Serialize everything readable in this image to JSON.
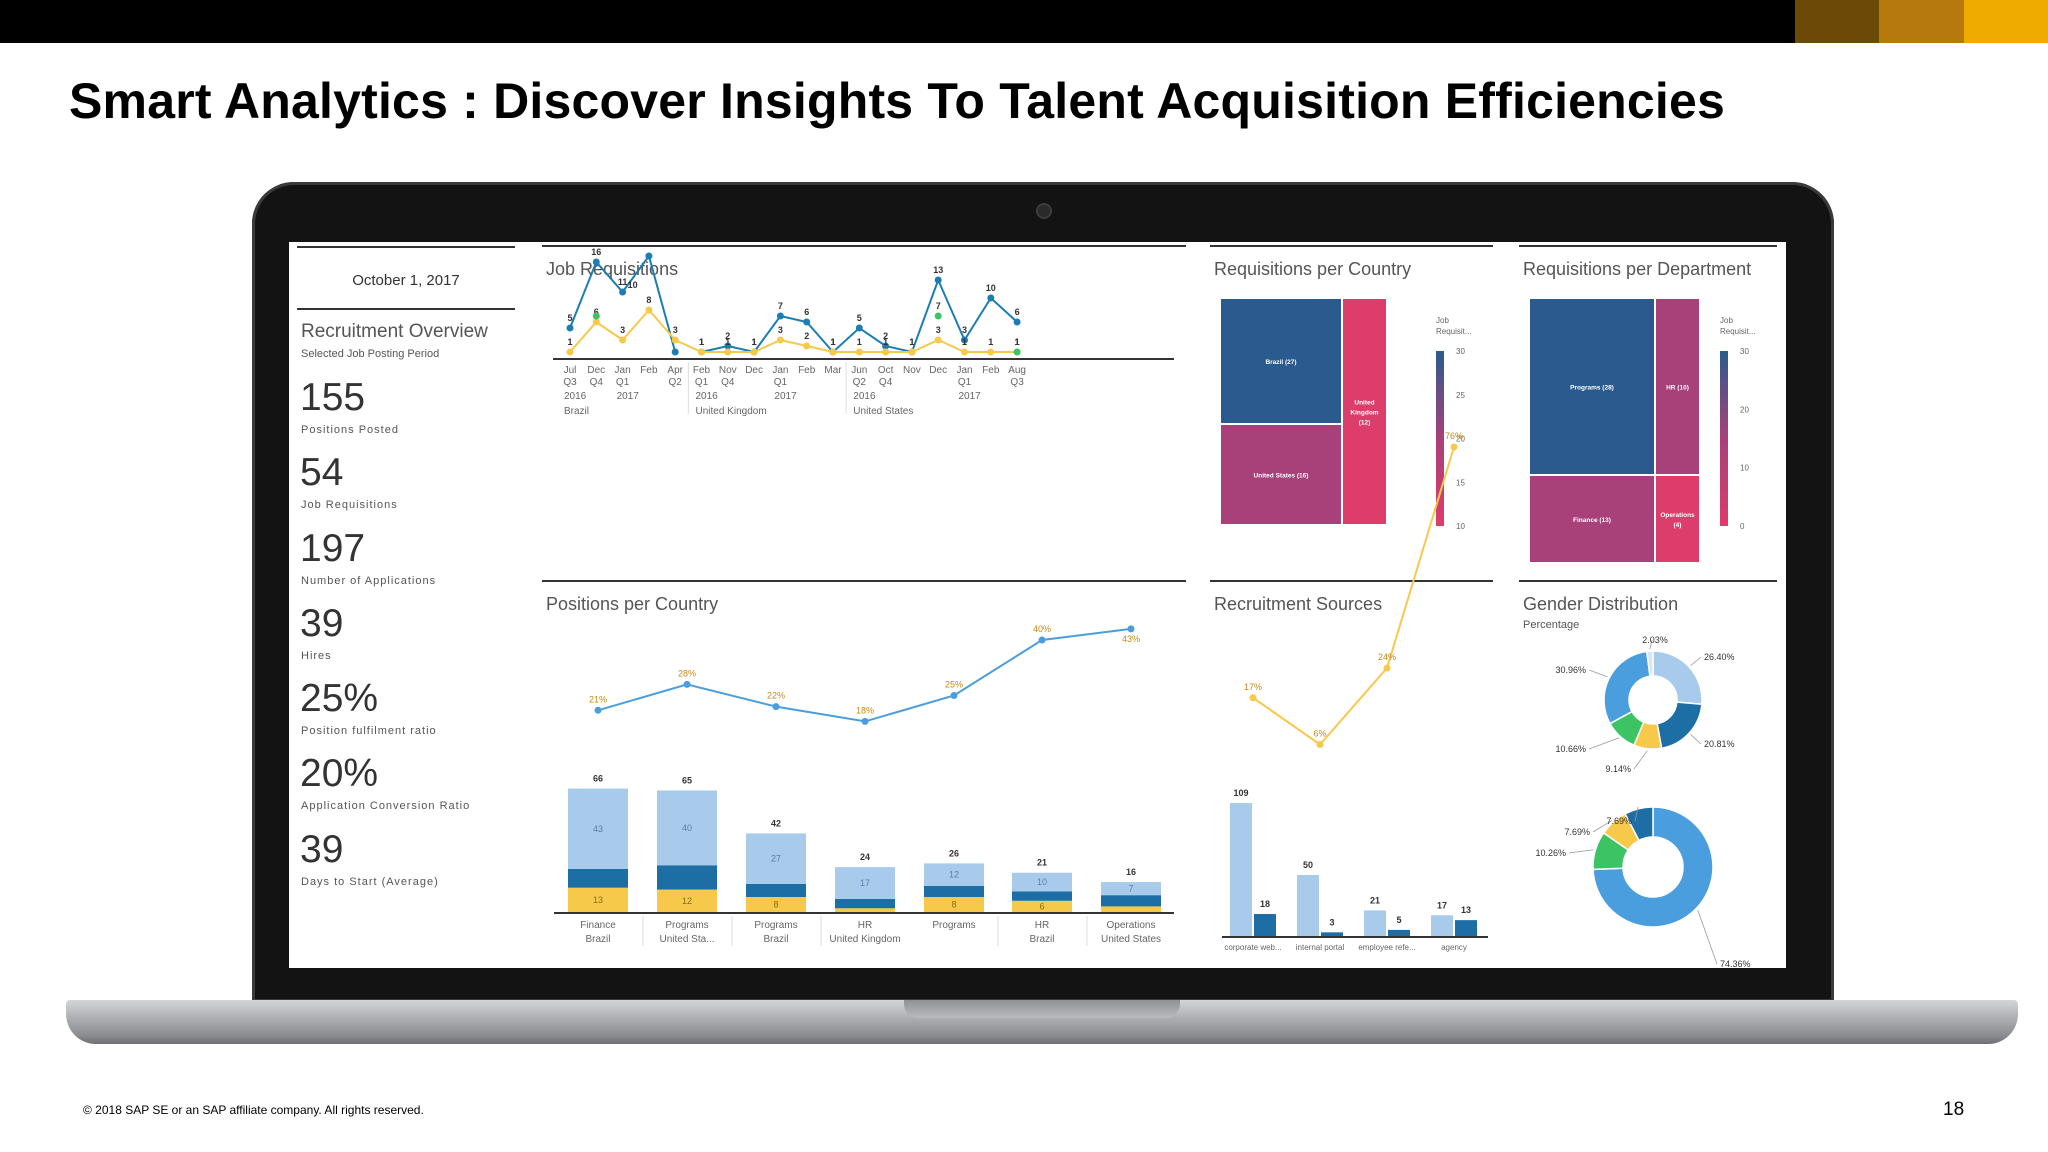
{
  "slide": {
    "title": "Smart Analytics : Discover Insights To Talent Acquisition Efficiencies",
    "footer": "© 2018 SAP SE or an SAP affiliate company. All rights reserved.",
    "page_number": "18",
    "brand_colors": [
      "#6b4a08",
      "#b6790e",
      "#f0ab00"
    ]
  },
  "sidebar": {
    "date": "October 1, 2017",
    "heading": "Recruitment Overview",
    "subheading": "Selected Job Posting Period",
    "kpis": [
      {
        "value": "155",
        "label": "Positions Posted"
      },
      {
        "value": "54",
        "label": "Job Requisitions"
      },
      {
        "value": "197",
        "label": "Number of Applications"
      },
      {
        "value": "39",
        "label": "Hires"
      },
      {
        "value": "25%",
        "label": "Position fulfilment ratio"
      },
      {
        "value": "20%",
        "label": "Application Conversion Ratio"
      },
      {
        "value": "39",
        "label": "Days to Start (Average)"
      }
    ]
  },
  "panels": {
    "job_requisitions": "Job Requisitions",
    "req_country": "Requisitions per Country",
    "req_department": "Requisitions per Department",
    "positions_country": "Positions per  Country",
    "recruitment_sources": "Recruitment Sources",
    "gender": "Gender Distribution",
    "gender_sub": "Percentage"
  },
  "colors": {
    "dark_blue": "#1c6ea4",
    "navy": "#2b5b8e",
    "light_blue": "#a8cbec",
    "mid_blue": "#4a9ede",
    "teal_line": "#1b7db3",
    "yellow": "#f7c94b",
    "green": "#3cc464",
    "magenta": "#a8407a",
    "pink": "#dc3d6b"
  },
  "chart_data": [
    {
      "type": "line",
      "title": "Job Requisitions",
      "tick_labels": [
        [
          "Jul",
          "Q3",
          "2016",
          "Brazil"
        ],
        [
          "Dec",
          "Q4",
          "",
          ""
        ],
        [
          "Jan",
          "Q1",
          "2017",
          ""
        ],
        [
          "Feb",
          "",
          "",
          ""
        ],
        [
          "Apr",
          "Q2",
          "",
          ""
        ],
        [
          "Feb",
          "Q1",
          "2016",
          "United Kingdom"
        ],
        [
          "Nov",
          "Q4",
          "",
          ""
        ],
        [
          "Dec",
          "",
          "",
          ""
        ],
        [
          "Jan",
          "Q1",
          "2017",
          ""
        ],
        [
          "Feb",
          "",
          "",
          ""
        ],
        [
          "Mar",
          "",
          "",
          ""
        ],
        [
          "Jun",
          "Q2",
          "2016",
          "United States"
        ],
        [
          "Oct",
          "Q4",
          "",
          ""
        ],
        [
          "Nov",
          "",
          "",
          ""
        ],
        [
          "Dec",
          "",
          "",
          ""
        ],
        [
          "Jan",
          "Q1",
          "2017",
          ""
        ],
        [
          "Feb",
          "",
          "",
          ""
        ],
        [
          "Aug",
          "Q3",
          "",
          ""
        ]
      ],
      "series": [
        {
          "values": [
            5,
            16,
            11,
            null,
            null,
            1,
            2,
            1,
            7,
            6,
            1,
            5,
            2,
            1,
            13,
            3,
            10,
            6
          ]
        },
        {
          "values": [
            1,
            6,
            3,
            8,
            3,
            1,
            1,
            1,
            3,
            2,
            1,
            1,
            1,
            1,
            3,
            1,
            1,
            1
          ]
        },
        {
          "values": [
            null,
            null,
            null,
            null,
            null,
            null,
            null,
            null,
            null,
            null,
            null,
            null,
            null,
            null,
            7,
            null,
            null,
            1
          ]
        }
      ],
      "point_labels": [
        [
          "5",
          "16",
          "11",
          null,
          null,
          "1",
          "2",
          "1",
          "7",
          "6",
          "1",
          "5",
          "2",
          "1",
          "13",
          "3",
          "10",
          "6"
        ],
        [
          "1",
          "6",
          "3",
          "8",
          "3",
          "1",
          "1",
          "1",
          "3",
          "2",
          "1",
          "1",
          "1",
          "1",
          "3",
          "1",
          "1",
          "1"
        ],
        [
          null,
          "",
          null,
          null,
          null,
          null,
          null,
          null,
          null,
          null,
          null,
          null,
          null,
          null,
          "7",
          null,
          null,
          "1"
        ]
      ],
      "extra_labels": [
        "10"
      ]
    },
    {
      "type": "heatmap",
      "title": "Requisitions per Country",
      "cells": [
        {
          "label": "Brazil (27)",
          "value": 27
        },
        {
          "label": "United States (16)",
          "value": 16
        },
        {
          "label": "United Kingdom (12)",
          "value": 12
        }
      ],
      "legend_title": "Job Requisit...",
      "legend_ticks": [
        "30",
        "25",
        "20",
        "15",
        "10"
      ]
    },
    {
      "type": "heatmap",
      "title": "Requisitions per Department",
      "cells": [
        {
          "label": "Programs (28)",
          "value": 28
        },
        {
          "label": "HR (10)",
          "value": 10
        },
        {
          "label": "Finance (13)",
          "value": 13
        },
        {
          "label": "Operations (4)",
          "value": 4
        }
      ],
      "legend_title": "Job Requisit...",
      "legend_ticks": [
        "30",
        "20",
        "10",
        "0"
      ]
    },
    {
      "type": "bar",
      "title": "Positions per  Country",
      "categories": [
        [
          "Finance",
          "Brazil"
        ],
        [
          "Programs",
          "United Sta..."
        ],
        [
          "Programs",
          "Brazil"
        ],
        [
          "HR",
          "United Kingdom"
        ],
        [
          "Programs",
          ""
        ],
        [
          "HR",
          "Brazil"
        ],
        [
          "Operations",
          "United States"
        ]
      ],
      "totals": [
        66,
        65,
        42,
        24,
        26,
        21,
        16
      ],
      "series": [
        {
          "values": [
            13,
            12,
            8,
            2,
            8,
            6,
            3
          ],
          "labels": [
            "13",
            "12",
            "8",
            "",
            "8",
            "6",
            ""
          ]
        },
        {
          "values": [
            10,
            13,
            7,
            5,
            6,
            5,
            6
          ],
          "labels": [
            "",
            "",
            "",
            "",
            "",
            "",
            ""
          ]
        },
        {
          "values": [
            43,
            40,
            27,
            17,
            12,
            10,
            7
          ],
          "labels": [
            "43",
            "40",
            "27",
            "17",
            "12",
            "10",
            "7"
          ]
        }
      ],
      "line": {
        "values": [
          21,
          28,
          22,
          18,
          25,
          40,
          43
        ],
        "labels": [
          "21%",
          "28%",
          "22%",
          "18%",
          "25%",
          "40%",
          "43%"
        ]
      }
    },
    {
      "type": "bar",
      "title": "Recruitment Sources",
      "categories": [
        "corporate web...",
        "internal portal",
        "employee refe...",
        "agency"
      ],
      "pairs": [
        [
          109,
          18
        ],
        [
          50,
          3
        ],
        [
          21,
          5
        ],
        [
          17,
          13
        ]
      ],
      "line": {
        "values": [
          17,
          6,
          24,
          76
        ],
        "labels": [
          "17%",
          "6%",
          "24%",
          "76%"
        ]
      }
    },
    {
      "type": "pie",
      "title": "Gender Distribution",
      "slices": [
        {
          "label": "26.40%",
          "value": 26.4
        },
        {
          "label": "20.81%",
          "value": 20.81
        },
        {
          "label": "9.14%",
          "value": 9.14
        },
        {
          "label": "10.66%",
          "value": 10.66
        },
        {
          "label": "30.96%",
          "value": 30.96
        },
        {
          "label": "2.03%",
          "value": 2.03
        }
      ]
    },
    {
      "type": "pie",
      "slices": [
        {
          "label": "74.36%",
          "value": 74.36
        },
        {
          "label": "10.26%",
          "value": 10.26
        },
        {
          "label": "7.69%",
          "value": 7.69
        },
        {
          "label": "7.69%",
          "value": 7.69
        }
      ]
    }
  ]
}
